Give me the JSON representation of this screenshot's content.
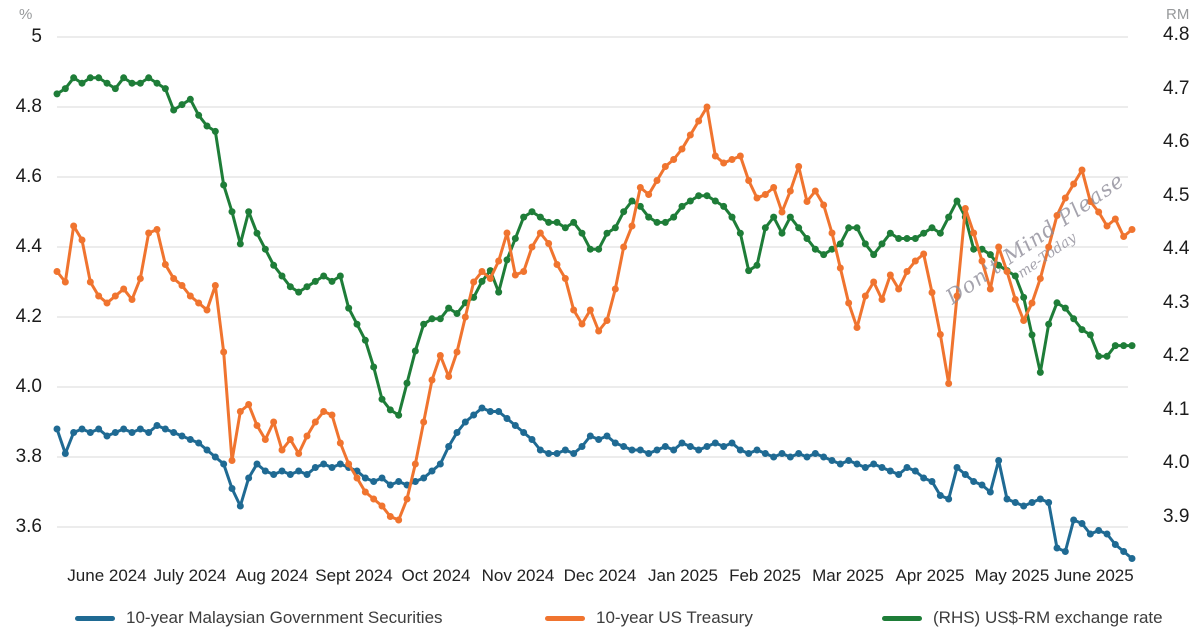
{
  "chart_data": {
    "type": "line",
    "title": "",
    "marker": "circle",
    "grid": true,
    "legend_position": "bottom",
    "x_tick_labels": [
      "June 2024",
      "July 2024",
      "Aug 2024",
      "Sept 2024",
      "Oct 2024",
      "Nov 2024",
      "Dec 2024",
      "Jan 2025",
      "Feb 2025",
      "Mar 2025",
      "Apr 2025",
      "May 2025",
      "June 2025"
    ],
    "left_axis": {
      "unit": "%",
      "min": 3.6,
      "max": 5.0,
      "ticks": [
        5.0,
        4.8,
        4.6,
        4.4,
        4.2,
        4.0,
        3.8,
        3.6
      ],
      "tick_labels": [
        "5",
        "4.8",
        "4.6",
        "4.4",
        "4.2",
        "4.0",
        "3.8",
        "3.6"
      ]
    },
    "right_axis": {
      "unit": "RM",
      "min": 3.9,
      "max": 4.8,
      "ticks": [
        4.8,
        4.7,
        4.6,
        4.5,
        4.4,
        4.3,
        4.2,
        4.1,
        4.0,
        3.9
      ],
      "tick_labels": [
        "4.8",
        "4.7",
        "4.6",
        "4.5",
        "4.4",
        "4.3",
        "4.2",
        "4.1",
        "4.0",
        "3.9"
      ]
    },
    "series": [
      {
        "name": "10-year Malaysian Government Securities",
        "color": "#1f6a93",
        "axis": "left",
        "values": [
          3.88,
          3.81,
          3.87,
          3.88,
          3.87,
          3.88,
          3.86,
          3.87,
          3.88,
          3.87,
          3.88,
          3.87,
          3.89,
          3.88,
          3.87,
          3.86,
          3.85,
          3.84,
          3.82,
          3.8,
          3.78,
          3.71,
          3.66,
          3.74,
          3.78,
          3.76,
          3.75,
          3.76,
          3.75,
          3.76,
          3.75,
          3.77,
          3.78,
          3.77,
          3.78,
          3.77,
          3.76,
          3.74,
          3.73,
          3.74,
          3.72,
          3.73,
          3.72,
          3.73,
          3.74,
          3.76,
          3.78,
          3.83,
          3.87,
          3.9,
          3.92,
          3.94,
          3.93,
          3.93,
          3.91,
          3.89,
          3.87,
          3.85,
          3.82,
          3.81,
          3.81,
          3.82,
          3.81,
          3.83,
          3.86,
          3.85,
          3.86,
          3.84,
          3.83,
          3.82,
          3.82,
          3.81,
          3.82,
          3.83,
          3.82,
          3.84,
          3.83,
          3.82,
          3.83,
          3.84,
          3.83,
          3.84,
          3.82,
          3.81,
          3.82,
          3.81,
          3.8,
          3.81,
          3.8,
          3.81,
          3.8,
          3.81,
          3.8,
          3.79,
          3.78,
          3.79,
          3.78,
          3.77,
          3.78,
          3.77,
          3.76,
          3.75,
          3.77,
          3.76,
          3.74,
          3.73,
          3.69,
          3.68,
          3.77,
          3.75,
          3.73,
          3.72,
          3.7,
          3.79,
          3.68,
          3.67,
          3.66,
          3.67,
          3.68,
          3.67,
          3.54,
          3.53,
          3.62,
          3.61,
          3.58,
          3.59,
          3.58,
          3.55,
          3.53,
          3.51
        ]
      },
      {
        "name": "10-year US Treasury",
        "color": "#f0742f",
        "axis": "left",
        "values": [
          4.33,
          4.3,
          4.46,
          4.42,
          4.3,
          4.26,
          4.24,
          4.26,
          4.28,
          4.25,
          4.31,
          4.44,
          4.45,
          4.35,
          4.31,
          4.29,
          4.26,
          4.24,
          4.22,
          4.29,
          4.1,
          3.79,
          3.93,
          3.95,
          3.89,
          3.85,
          3.9,
          3.82,
          3.85,
          3.81,
          3.86,
          3.9,
          3.93,
          3.92,
          3.84,
          3.78,
          3.74,
          3.7,
          3.68,
          3.66,
          3.63,
          3.62,
          3.68,
          3.78,
          3.9,
          4.02,
          4.09,
          4.03,
          4.1,
          4.2,
          4.3,
          4.33,
          4.31,
          4.36,
          4.44,
          4.32,
          4.33,
          4.4,
          4.44,
          4.41,
          4.35,
          4.31,
          4.22,
          4.18,
          4.22,
          4.16,
          4.19,
          4.28,
          4.4,
          4.46,
          4.57,
          4.55,
          4.59,
          4.63,
          4.65,
          4.68,
          4.72,
          4.76,
          4.8,
          4.66,
          4.64,
          4.65,
          4.66,
          4.59,
          4.54,
          4.55,
          4.57,
          4.5,
          4.56,
          4.63,
          4.53,
          4.56,
          4.52,
          4.44,
          4.34,
          4.24,
          4.17,
          4.26,
          4.3,
          4.25,
          4.32,
          4.28,
          4.33,
          4.36,
          4.38,
          4.27,
          4.15,
          4.01,
          4.26,
          4.51,
          4.44,
          4.36,
          4.28,
          4.4,
          4.33,
          4.25,
          4.19,
          4.24,
          4.31,
          4.4,
          4.49,
          4.54,
          4.58,
          4.62,
          4.53,
          4.5,
          4.46,
          4.48,
          4.43,
          4.45
        ]
      },
      {
        "name": "(RHS) US$-RM exchange rate",
        "color": "#1e7d38",
        "axis": "right",
        "values": [
          4.69,
          4.7,
          4.72,
          4.71,
          4.72,
          4.72,
          4.71,
          4.7,
          4.72,
          4.71,
          4.71,
          4.72,
          4.71,
          4.7,
          4.66,
          4.67,
          4.68,
          4.65,
          4.63,
          4.62,
          4.52,
          4.47,
          4.41,
          4.47,
          4.43,
          4.4,
          4.37,
          4.35,
          4.33,
          4.32,
          4.33,
          4.34,
          4.35,
          4.34,
          4.35,
          4.29,
          4.26,
          4.23,
          4.18,
          4.12,
          4.1,
          4.09,
          4.15,
          4.21,
          4.26,
          4.27,
          4.27,
          4.29,
          4.28,
          4.3,
          4.31,
          4.34,
          4.36,
          4.32,
          4.38,
          4.42,
          4.46,
          4.47,
          4.46,
          4.45,
          4.45,
          4.44,
          4.45,
          4.43,
          4.4,
          4.4,
          4.43,
          4.44,
          4.47,
          4.49,
          4.48,
          4.46,
          4.45,
          4.45,
          4.46,
          4.48,
          4.49,
          4.5,
          4.5,
          4.49,
          4.48,
          4.46,
          4.43,
          4.36,
          4.37,
          4.44,
          4.46,
          4.43,
          4.46,
          4.44,
          4.42,
          4.4,
          4.39,
          4.4,
          4.41,
          4.44,
          4.44,
          4.41,
          4.39,
          4.41,
          4.43,
          4.42,
          4.42,
          4.42,
          4.43,
          4.44,
          4.43,
          4.46,
          4.49,
          4.46,
          4.4,
          4.4,
          4.39,
          4.37,
          4.36,
          4.35,
          4.31,
          4.24,
          4.17,
          4.26,
          4.3,
          4.29,
          4.27,
          4.25,
          4.24,
          4.2,
          4.2,
          4.22,
          4.22,
          4.22
        ]
      }
    ]
  },
  "watermark": {
    "line1": "Don't Mind Please",
    "line2": "me-Today"
  },
  "style": {
    "gridline_color": "#d8d8d8",
    "tick_label_color": "#1c1c1c",
    "unit_label_color": "#97999b"
  }
}
